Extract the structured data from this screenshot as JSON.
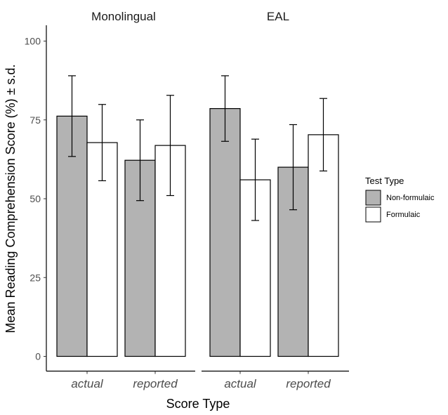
{
  "chart_data": {
    "type": "bar",
    "xlabel": "Score Type",
    "ylabel": "Mean Reading Comprehension Score (%) ± s.d.",
    "ylim": [
      0,
      100
    ],
    "yticks": [
      0,
      25,
      50,
      75,
      100
    ],
    "categories": [
      "actual",
      "reported"
    ],
    "legend": {
      "title": "Test Type",
      "placement": "right",
      "entries": [
        {
          "name": "Non-formulaic",
          "color": "#b3b3b3"
        },
        {
          "name": "Formulaic",
          "color": "#ffffff"
        }
      ]
    },
    "panels": [
      {
        "title": "Monolingual",
        "series": [
          {
            "name": "Non-formulaic",
            "values": [
              76.2,
              62.2
            ],
            "error": [
              12.8,
              12.8
            ]
          },
          {
            "name": "Formulaic",
            "values": [
              67.8,
              66.9
            ],
            "error": [
              12.1,
              15.9
            ]
          }
        ]
      },
      {
        "title": "EAL",
        "series": [
          {
            "name": "Non-formulaic",
            "values": [
              78.6,
              60.0
            ],
            "error": [
              10.4,
              13.5
            ]
          },
          {
            "name": "Formulaic",
            "values": [
              56.0,
              70.3
            ],
            "error": [
              12.9,
              11.5
            ]
          }
        ]
      }
    ]
  }
}
